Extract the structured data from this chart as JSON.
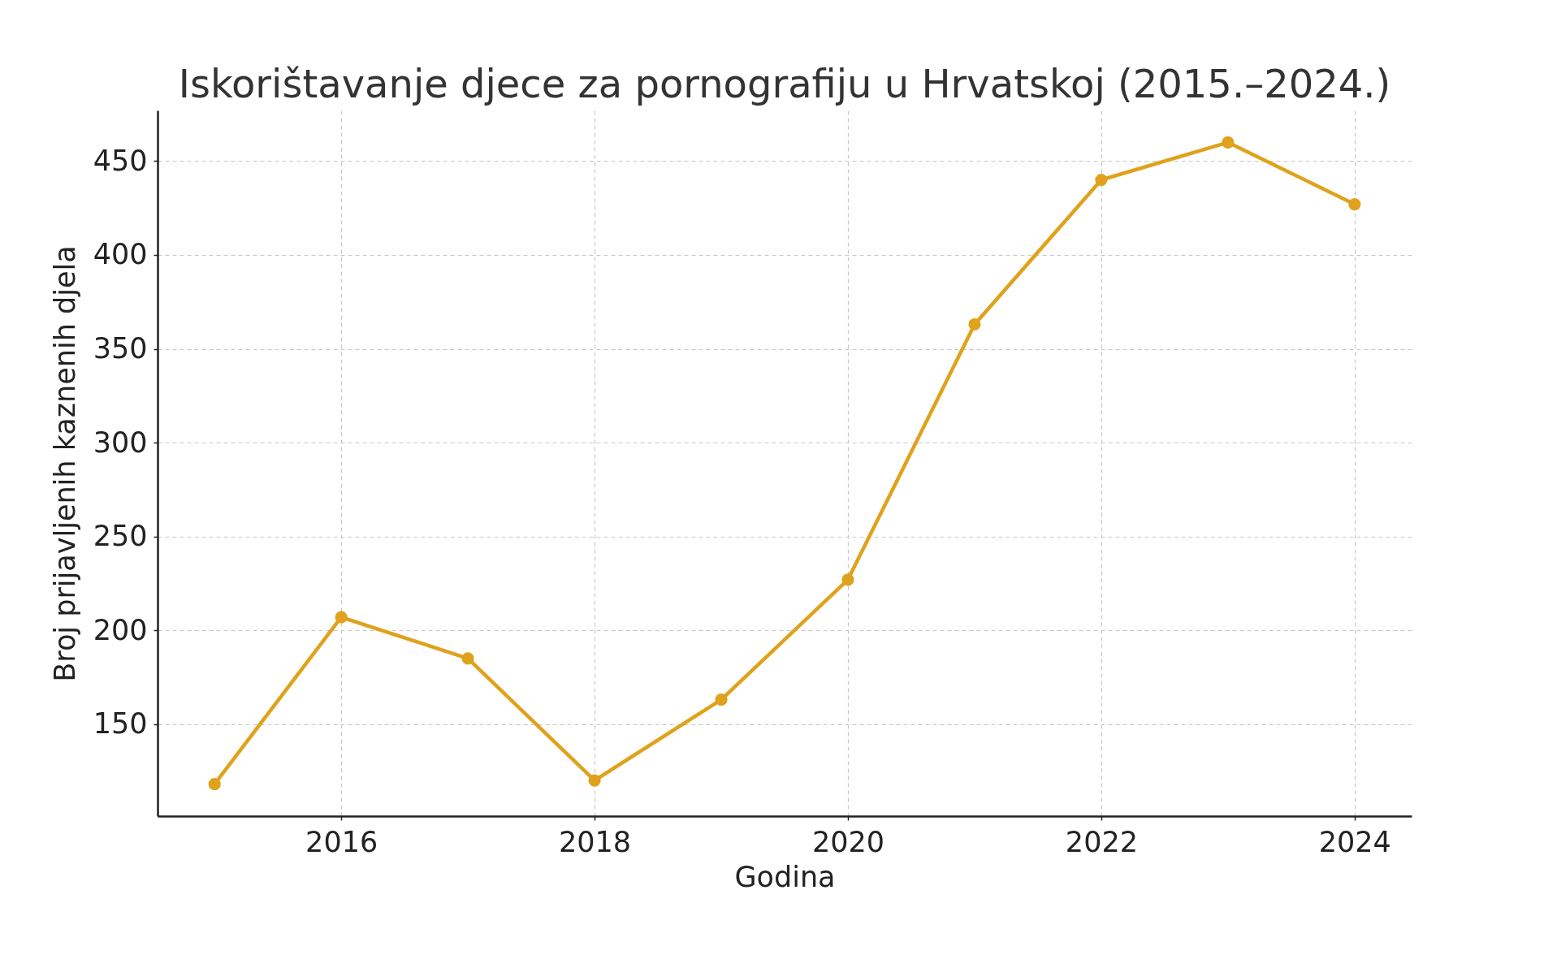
{
  "chart_data": {
    "type": "line",
    "title": "Iskorištavanje djece za pornografiju u Hrvatskoj (2015.–2024.)",
    "xlabel": "Godina",
    "ylabel": "Broj prijavljenih kaznenih djela",
    "x": [
      2015,
      2016,
      2017,
      2018,
      2019,
      2020,
      2021,
      2022,
      2023,
      2024
    ],
    "values": [
      118,
      207,
      185,
      120,
      163,
      227,
      363,
      440,
      460,
      427
    ],
    "color": "#e0a21c",
    "xlim": [
      2014.55,
      2024.45
    ],
    "xticks": [
      2016,
      2018,
      2020,
      2022,
      2024
    ],
    "ylim": [
      101,
      477
    ],
    "yticks": [
      150,
      200,
      250,
      300,
      350,
      400,
      450
    ],
    "grid": true,
    "marker": "circle",
    "line_style": "solid"
  }
}
